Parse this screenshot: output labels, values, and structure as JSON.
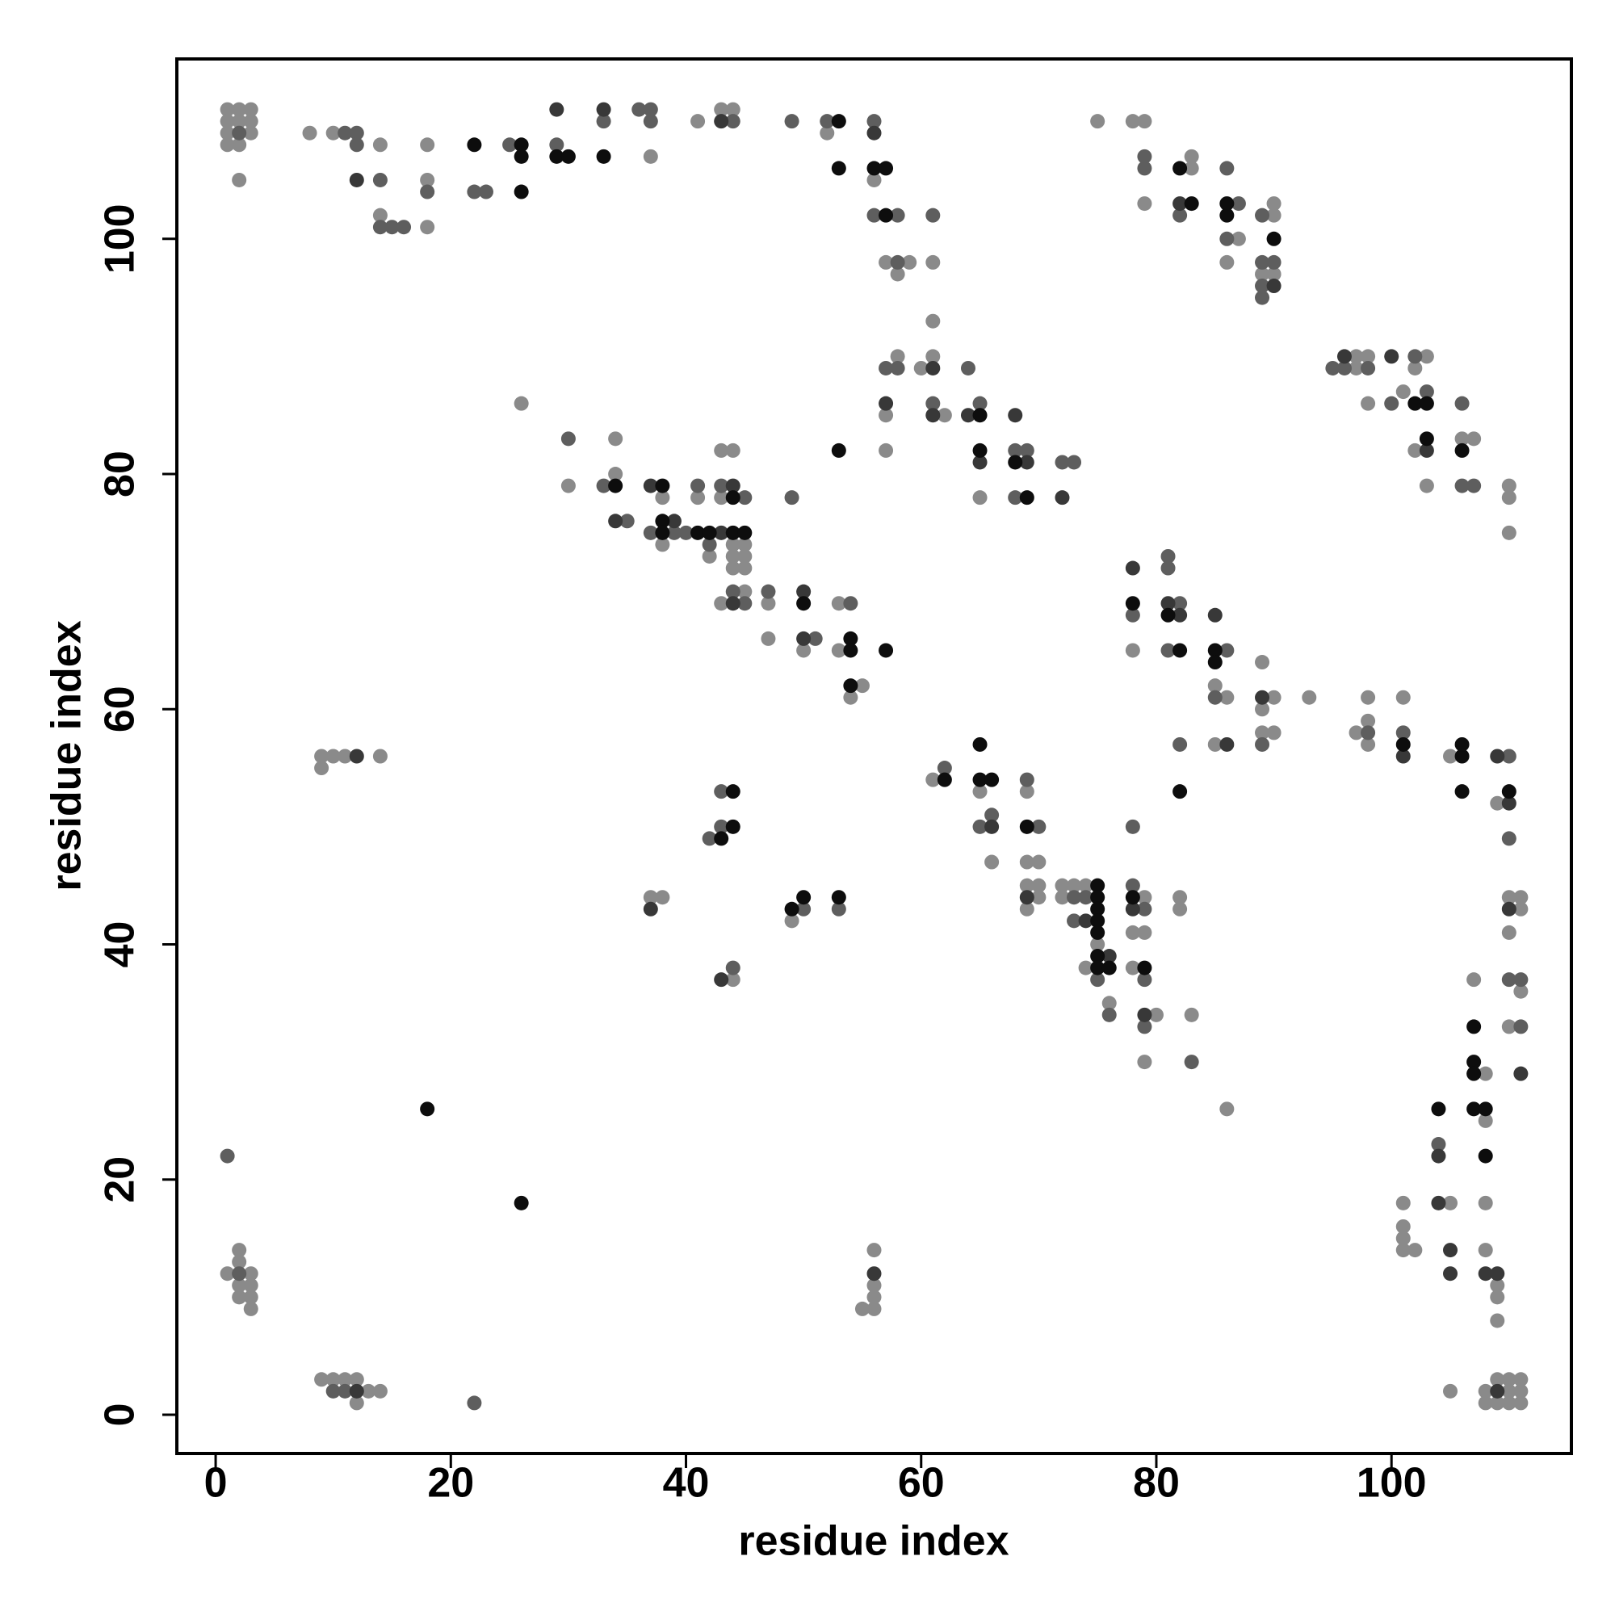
{
  "chart_data": {
    "type": "scatter",
    "xlabel": "residue index",
    "ylabel": "residue index",
    "xlim": [
      -3.3,
      115.3
    ],
    "ylim": [
      -3.3,
      115.3
    ],
    "xticks": [
      0,
      20,
      40,
      60,
      80,
      100
    ],
    "yticks": [
      0,
      20,
      40,
      60,
      80,
      100
    ],
    "grid": false,
    "series": [
      {
        "color": "#8a8a8a",
        "x": [
          1,
          1,
          1,
          1,
          2,
          2,
          2,
          3,
          3,
          3,
          2,
          8,
          10,
          14,
          14,
          18,
          18,
          18,
          37,
          41,
          43,
          44,
          52,
          56,
          57,
          59,
          58,
          61,
          75,
          78,
          79,
          79,
          83,
          83,
          87,
          86,
          90,
          90,
          89,
          90,
          61,
          58,
          60,
          61,
          57,
          62,
          65,
          57,
          97,
          97,
          98,
          103,
          102,
          98,
          101,
          102,
          106,
          107,
          103,
          110,
          110,
          110,
          26,
          34,
          30,
          34,
          38,
          38,
          41,
          43,
          44,
          43,
          42,
          44,
          45,
          44,
          45,
          44,
          45,
          45,
          43,
          47,
          47,
          50,
          53,
          53,
          55,
          54,
          78,
          85,
          86,
          89,
          90,
          89,
          85,
          89,
          90,
          93,
          98,
          98,
          97,
          98,
          101,
          105,
          109,
          9,
          10,
          11,
          9,
          14,
          61,
          65,
          66,
          69,
          69,
          70,
          69,
          70,
          70,
          69,
          72,
          73,
          74,
          72,
          75,
          74,
          76,
          79,
          78,
          79,
          78,
          80,
          79,
          82,
          82,
          83,
          86,
          37,
          38,
          49,
          44,
          110,
          111,
          111,
          110,
          111,
          110,
          107,
          108,
          108,
          101,
          105,
          108,
          101,
          101,
          101,
          102,
          108,
          109,
          109,
          109,
          105,
          108,
          110,
          111,
          108,
          109,
          110,
          111,
          109,
          110,
          111,
          1,
          3,
          2,
          2,
          2,
          3,
          2,
          3,
          3,
          56,
          56,
          56,
          55,
          56,
          9,
          10,
          11,
          12,
          13,
          14,
          12
        ],
        "y": [
          111,
          110,
          109,
          108,
          111,
          110,
          108,
          111,
          110,
          109,
          105,
          109,
          109,
          108,
          102,
          108,
          105,
          101,
          107,
          110,
          111,
          111,
          109,
          105,
          98,
          98,
          97,
          98,
          110,
          110,
          110,
          103,
          106,
          107,
          100,
          98,
          103,
          102,
          97,
          97,
          93,
          90,
          89,
          90,
          85,
          85,
          78,
          82,
          90,
          89,
          90,
          90,
          89,
          86,
          87,
          82,
          83,
          83,
          79,
          79,
          78,
          75,
          86,
          83,
          79,
          80,
          78,
          74,
          78,
          82,
          82,
          78,
          73,
          74,
          74,
          73,
          73,
          72,
          72,
          70,
          69,
          69,
          66,
          65,
          69,
          65,
          62,
          61,
          65,
          62,
          61,
          64,
          61,
          60,
          57,
          58,
          58,
          61,
          61,
          59,
          58,
          57,
          61,
          56,
          52,
          56,
          56,
          56,
          55,
          56,
          54,
          53,
          47,
          53,
          47,
          47,
          45,
          45,
          44,
          43,
          45,
          45,
          45,
          44,
          40,
          38,
          35,
          44,
          41,
          41,
          38,
          34,
          30,
          44,
          43,
          34,
          26,
          44,
          44,
          42,
          37,
          44,
          44,
          43,
          41,
          36,
          33,
          37,
          29,
          25,
          18,
          18,
          18,
          16,
          15,
          14,
          14,
          14,
          11,
          10,
          8,
          2,
          2,
          2,
          2,
          1,
          1,
          1,
          1,
          3,
          3,
          3,
          12,
          12,
          13,
          14,
          11,
          11,
          10,
          10,
          9,
          14,
          11,
          10,
          9,
          9,
          3,
          3,
          3,
          3,
          2,
          2,
          1
        ]
      },
      {
        "color": "#5e5e5e",
        "x": [
          2,
          11,
          12,
          12,
          14,
          14,
          15,
          16,
          18,
          22,
          23,
          25,
          29,
          33,
          36,
          37,
          37,
          44,
          49,
          52,
          56,
          56,
          58,
          58,
          61,
          79,
          79,
          82,
          86,
          87,
          86,
          89,
          89,
          90,
          89,
          89,
          57,
          58,
          64,
          61,
          65,
          68,
          69,
          68,
          72,
          73,
          95,
          96,
          98,
          102,
          100,
          106,
          103,
          106,
          107,
          30,
          33,
          35,
          37,
          39,
          40,
          41,
          43,
          45,
          42,
          44,
          45,
          47,
          51,
          54,
          49,
          78,
          81,
          86,
          85,
          89,
          98,
          101,
          110,
          110,
          82,
          81,
          81,
          82,
          62,
          66,
          65,
          69,
          70,
          73,
          74,
          73,
          75,
          76,
          78,
          78,
          79,
          79,
          79,
          83,
          43,
          43,
          42,
          50,
          53,
          44,
          110,
          111,
          111,
          104,
          1,
          2,
          10,
          11,
          22
        ],
        "y": [
          109,
          109,
          109,
          108,
          105,
          101,
          101,
          101,
          104,
          104,
          104,
          108,
          108,
          110,
          111,
          111,
          110,
          110,
          110,
          110,
          110,
          102,
          102,
          98,
          102,
          107,
          106,
          102,
          106,
          103,
          100,
          102,
          98,
          98,
          96,
          95,
          89,
          89,
          89,
          86,
          86,
          82,
          82,
          78,
          81,
          81,
          89,
          89,
          89,
          90,
          86,
          86,
          87,
          79,
          79,
          83,
          79,
          76,
          75,
          75,
          75,
          79,
          79,
          78,
          74,
          70,
          69,
          70,
          66,
          69,
          78,
          68,
          65,
          65,
          61,
          57,
          58,
          58,
          56,
          49,
          57,
          73,
          72,
          69,
          55,
          51,
          50,
          54,
          50,
          44,
          44,
          42,
          37,
          34,
          50,
          45,
          43,
          37,
          33,
          30,
          53,
          50,
          49,
          43,
          43,
          38,
          37,
          37,
          33,
          23,
          22,
          12,
          2,
          2,
          1
        ]
      },
      {
        "color": "#383838",
        "x": [
          12,
          29,
          33,
          43,
          56,
          82,
          90,
          61,
          57,
          61,
          64,
          65,
          68,
          69,
          72,
          96,
          100,
          103,
          34,
          37,
          39,
          43,
          44,
          44,
          50,
          50,
          78,
          81,
          82,
          85,
          86,
          89,
          101,
          109,
          110,
          66,
          69,
          74,
          76,
          78,
          79,
          37,
          43,
          110,
          111,
          104,
          104,
          105,
          105,
          108,
          109,
          109,
          12,
          56,
          12
        ],
        "y": [
          105,
          111,
          111,
          110,
          109,
          103,
          96,
          89,
          86,
          85,
          85,
          81,
          85,
          81,
          78,
          90,
          90,
          82,
          76,
          79,
          76,
          75,
          79,
          69,
          70,
          66,
          72,
          69,
          68,
          68,
          57,
          61,
          56,
          56,
          52,
          50,
          44,
          42,
          39,
          43,
          34,
          43,
          37,
          43,
          29,
          22,
          18,
          14,
          12,
          12,
          12,
          2,
          56,
          12,
          2
        ]
      },
      {
        "color": "#0d0d0d",
        "x": [
          22,
          26,
          26,
          26,
          29,
          30,
          33,
          53,
          53,
          56,
          57,
          57,
          82,
          83,
          86,
          86,
          90,
          65,
          65,
          68,
          69,
          53,
          102,
          103,
          103,
          106,
          34,
          38,
          38,
          38,
          41,
          42,
          44,
          45,
          44,
          50,
          54,
          54,
          57,
          54,
          78,
          81,
          82,
          85,
          85,
          101,
          106,
          106,
          106,
          110,
          82,
          62,
          65,
          65,
          66,
          69,
          75,
          75,
          75,
          75,
          75,
          75,
          75,
          76,
          78,
          79,
          44,
          44,
          43,
          49,
          50,
          53,
          107,
          107,
          107,
          104,
          107,
          108,
          108,
          18,
          26
        ],
        "y": [
          108,
          108,
          107,
          104,
          107,
          107,
          107,
          110,
          106,
          106,
          106,
          102,
          106,
          103,
          103,
          102,
          100,
          85,
          82,
          81,
          78,
          82,
          86,
          86,
          83,
          82,
          79,
          79,
          76,
          75,
          75,
          75,
          75,
          75,
          78,
          69,
          66,
          65,
          65,
          62,
          69,
          68,
          65,
          65,
          64,
          57,
          56,
          57,
          53,
          53,
          53,
          54,
          57,
          54,
          54,
          50,
          45,
          44,
          43,
          42,
          41,
          39,
          38,
          38,
          44,
          38,
          53,
          50,
          49,
          43,
          44,
          44,
          33,
          30,
          29,
          26,
          26,
          26,
          22,
          26,
          18
        ]
      }
    ]
  }
}
